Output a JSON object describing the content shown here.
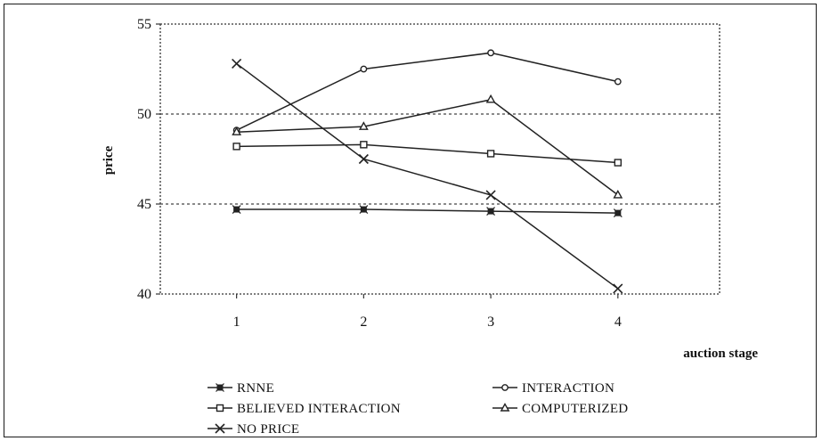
{
  "chart_data": {
    "type": "line",
    "x": [
      1,
      2,
      3,
      4
    ],
    "xlabel": "auction stage",
    "ylabel": "price",
    "xlim": [
      0.4,
      4.8
    ],
    "ylim": [
      40,
      55
    ],
    "y_ticks": [
      40,
      45,
      50,
      55
    ],
    "x_ticks": [
      1,
      2,
      3,
      4
    ],
    "grid": "horizontal dashed",
    "legend_position": "bottom",
    "series": [
      {
        "name": "RNNE",
        "marker": "asterisk",
        "values": [
          44.7,
          44.7,
          44.6,
          44.5
        ]
      },
      {
        "name": "INTERACTION",
        "marker": "circle",
        "values": [
          49.1,
          52.5,
          53.4,
          51.8
        ]
      },
      {
        "name": "BELIEVED INTERACTION",
        "marker": "square",
        "values": [
          48.2,
          48.3,
          47.8,
          47.3
        ]
      },
      {
        "name": "COMPUTERIZED",
        "marker": "triangle",
        "values": [
          49.0,
          49.3,
          50.8,
          45.5
        ]
      },
      {
        "name": "NO PRICE",
        "marker": "x",
        "values": [
          52.8,
          47.5,
          45.5,
          40.3
        ]
      }
    ]
  }
}
